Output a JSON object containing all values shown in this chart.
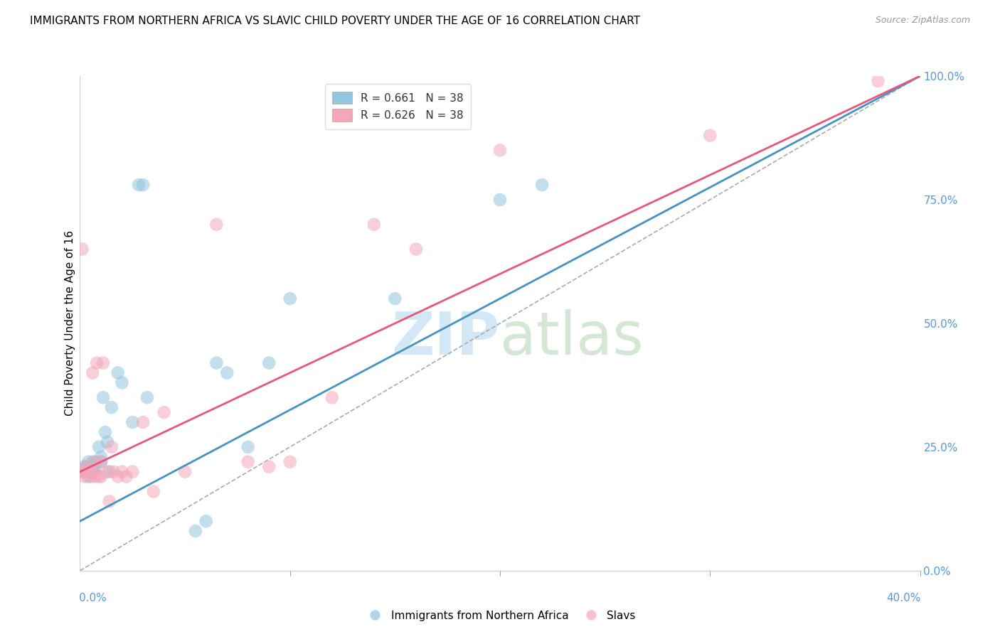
{
  "title": "IMMIGRANTS FROM NORTHERN AFRICA VS SLAVIC CHILD POVERTY UNDER THE AGE OF 16 CORRELATION CHART",
  "source": "Source: ZipAtlas.com",
  "ylabel": "Child Poverty Under the Age of 16",
  "ylabel_right_ticks": [
    "100.0%",
    "75.0%",
    "50.0%",
    "25.0%",
    "0.0%"
  ],
  "ylabel_right_vals": [
    1.0,
    0.75,
    0.5,
    0.25,
    0.0
  ],
  "legend_blue_label": "R = 0.661   N = 38",
  "legend_pink_label": "R = 0.626   N = 38",
  "legend_blue_series": "Immigrants from Northern Africa",
  "legend_pink_series": "Slavs",
  "blue_color": "#92c5de",
  "pink_color": "#f4a7b9",
  "blue_line_color": "#4393c3",
  "pink_line_color": "#e8567a",
  "diagonal_color": "#aaaaaa",
  "blue_scatter_x": [
    0.001,
    0.002,
    0.002,
    0.003,
    0.003,
    0.004,
    0.004,
    0.005,
    0.005,
    0.006,
    0.006,
    0.007,
    0.007,
    0.008,
    0.009,
    0.01,
    0.01,
    0.011,
    0.012,
    0.013,
    0.014,
    0.015,
    0.018,
    0.02,
    0.025,
    0.028,
    0.03,
    0.032,
    0.055,
    0.06,
    0.065,
    0.07,
    0.08,
    0.09,
    0.1,
    0.15,
    0.2,
    0.22
  ],
  "blue_scatter_y": [
    0.2,
    0.2,
    0.21,
    0.2,
    0.21,
    0.19,
    0.22,
    0.2,
    0.21,
    0.2,
    0.22,
    0.2,
    0.21,
    0.22,
    0.25,
    0.23,
    0.22,
    0.35,
    0.28,
    0.26,
    0.2,
    0.33,
    0.4,
    0.38,
    0.3,
    0.78,
    0.78,
    0.35,
    0.08,
    0.1,
    0.42,
    0.4,
    0.25,
    0.42,
    0.55,
    0.55,
    0.75,
    0.78
  ],
  "pink_scatter_x": [
    0.001,
    0.001,
    0.002,
    0.003,
    0.003,
    0.004,
    0.005,
    0.006,
    0.006,
    0.007,
    0.007,
    0.008,
    0.009,
    0.01,
    0.01,
    0.011,
    0.013,
    0.014,
    0.015,
    0.016,
    0.018,
    0.02,
    0.022,
    0.025,
    0.03,
    0.035,
    0.04,
    0.05,
    0.065,
    0.08,
    0.09,
    0.1,
    0.12,
    0.14,
    0.16,
    0.2,
    0.3,
    0.38
  ],
  "pink_scatter_y": [
    0.65,
    0.2,
    0.19,
    0.2,
    0.21,
    0.2,
    0.19,
    0.2,
    0.4,
    0.22,
    0.19,
    0.42,
    0.19,
    0.19,
    0.22,
    0.42,
    0.2,
    0.14,
    0.25,
    0.2,
    0.19,
    0.2,
    0.19,
    0.2,
    0.3,
    0.16,
    0.32,
    0.2,
    0.7,
    0.22,
    0.21,
    0.22,
    0.35,
    0.7,
    0.65,
    0.85,
    0.88,
    0.99
  ],
  "background_color": "#ffffff",
  "grid_color": "#cccccc",
  "xlim": [
    0.0,
    0.4
  ],
  "ylim": [
    0.0,
    1.0
  ],
  "blue_line_x0": 0.0,
  "blue_line_y0": 0.1,
  "blue_line_x1": 0.4,
  "blue_line_y1": 1.0,
  "pink_line_x0": 0.0,
  "pink_line_y0": 0.2,
  "pink_line_x1": 0.4,
  "pink_line_y1": 1.0
}
